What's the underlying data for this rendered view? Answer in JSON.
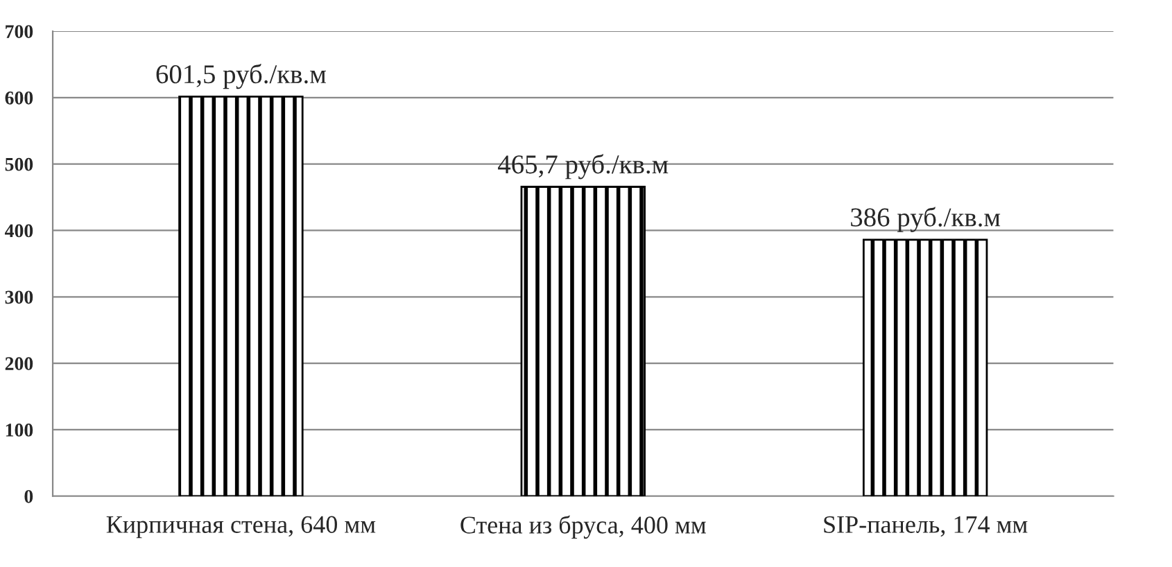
{
  "chart_data": {
    "type": "bar",
    "categories": [
      "Кирпичная стена, 640 мм",
      "Стена из бруса, 400 мм",
      "SIP-панель, 174 мм"
    ],
    "values": [
      601.5,
      465.7,
      386
    ],
    "value_labels": [
      "601,5 руб./кв.м",
      "465,7 руб./кв.м",
      "386 руб./кв.м"
    ],
    "color": "#000000",
    "ylim": [
      0,
      700
    ],
    "yticks": [
      0,
      100,
      200,
      300,
      400,
      500,
      600,
      700
    ],
    "grid": "y",
    "legend": false
  }
}
